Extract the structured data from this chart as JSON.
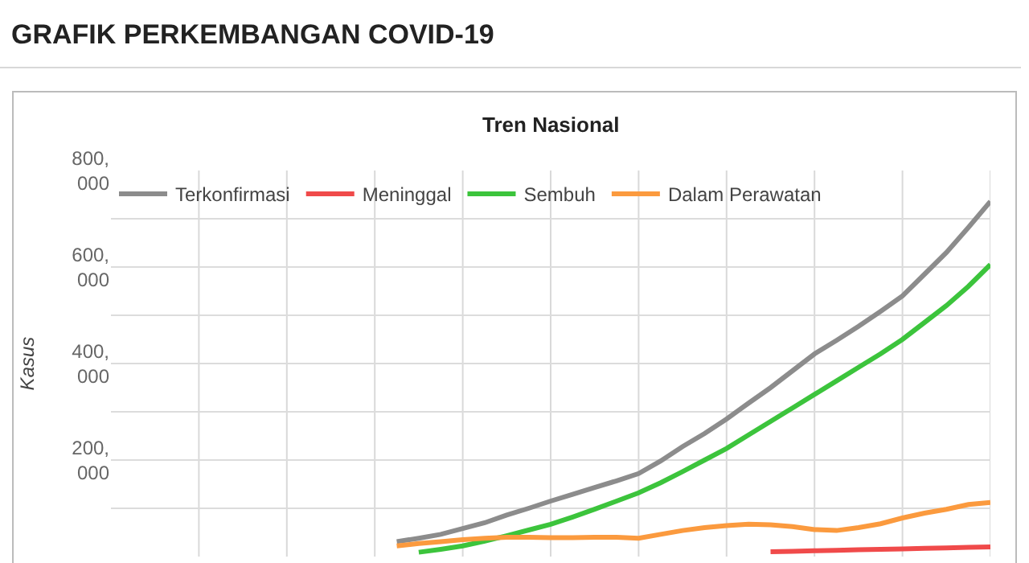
{
  "chart_data": {
    "type": "line",
    "title": "GRAFIK PERKEMBANGAN COVID-19",
    "subtitle": "Tren Nasional",
    "ylabel": "Kasus",
    "categories": [
      null,
      null,
      null,
      null,
      null,
      null,
      null,
      null,
      null,
      null,
      null,
      null,
      null,
      null,
      null,
      null,
      null,
      null,
      null,
      null,
      null,
      null,
      null,
      null,
      null,
      null,
      null,
      null,
      null,
      null,
      null,
      null,
      null,
      null,
      null,
      null,
      null,
      null,
      null,
      null,
      null
    ],
    "series": [
      {
        "name": "Terkonfirmasi",
        "color": "#8c8c8c",
        "values": [
          null,
          null,
          null,
          null,
          null,
          null,
          null,
          null,
          null,
          null,
          null,
          null,
          null,
          31000,
          38000,
          46000,
          58000,
          70000,
          86000,
          100000,
          115000,
          129000,
          143000,
          157000,
          172000,
          198000,
          228000,
          255000,
          285000,
          318000,
          350000,
          385000,
          420000,
          448000,
          477000,
          508000,
          540000,
          585000,
          630000,
          682000,
          736000
        ]
      },
      {
        "name": "Meninggal",
        "color": "#f04a4a",
        "values": [
          null,
          null,
          null,
          null,
          null,
          null,
          null,
          null,
          null,
          null,
          null,
          null,
          null,
          null,
          null,
          null,
          null,
          null,
          null,
          null,
          null,
          null,
          null,
          null,
          null,
          null,
          null,
          null,
          null,
          null,
          10000,
          11000,
          12000,
          13000,
          14000,
          15000,
          16000,
          17000,
          18000,
          19000,
          20000
        ]
      },
      {
        "name": "Sembuh",
        "color": "#3cc43c",
        "values": [
          null,
          null,
          null,
          null,
          null,
          null,
          null,
          null,
          null,
          null,
          null,
          null,
          null,
          null,
          9000,
          15000,
          22000,
          32000,
          43000,
          55000,
          67000,
          82000,
          98000,
          115000,
          132000,
          153000,
          176000,
          200000,
          224000,
          252000,
          280000,
          308000,
          336000,
          364000,
          392000,
          420000,
          450000,
          485000,
          520000,
          560000,
          605000
        ]
      },
      {
        "name": "Dalam Perawatan",
        "color": "#fb9a3e",
        "values": [
          null,
          null,
          null,
          null,
          null,
          null,
          null,
          null,
          null,
          null,
          null,
          null,
          null,
          22000,
          27000,
          31000,
          35000,
          38000,
          40000,
          40000,
          39000,
          39000,
          40000,
          40000,
          38000,
          46000,
          54000,
          60000,
          64000,
          67000,
          66000,
          62000,
          56000,
          54000,
          60000,
          68000,
          80000,
          90000,
          98000,
          108000,
          112000
        ]
      }
    ],
    "ylim": [
      0,
      800000
    ],
    "yticks": [
      {
        "value": 100000,
        "label": null
      },
      {
        "value": 200000,
        "label": "200,000"
      },
      {
        "value": 300000,
        "label": null
      },
      {
        "value": 400000,
        "label": "400,000"
      },
      {
        "value": 500000,
        "label": null
      },
      {
        "value": 600000,
        "label": "600,000"
      },
      {
        "value": 700000,
        "label": null
      },
      {
        "value": 800000,
        "label": "800,000"
      }
    ],
    "grid": true,
    "legend": "top left",
    "marker": "none",
    "line_style": "solid"
  }
}
